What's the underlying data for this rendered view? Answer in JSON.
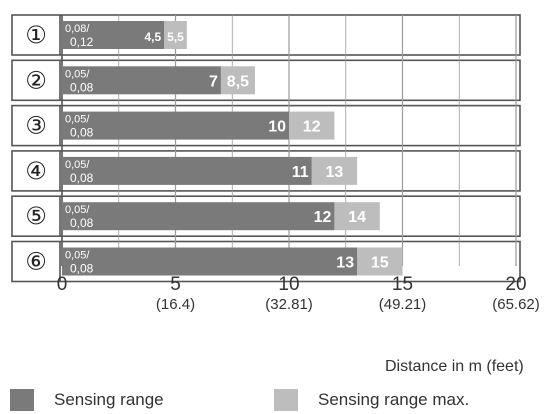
{
  "chart_data": {
    "type": "bar",
    "orientation": "horizontal",
    "stacked_range": true,
    "categories": [
      "①",
      "②",
      "③",
      "④",
      "⑤",
      "⑥"
    ],
    "series": [
      {
        "name": "Sensing range",
        "values": [
          4.5,
          7,
          10,
          11,
          12,
          13
        ],
        "labels": [
          "4,5",
          "7",
          "10",
          "11",
          "12",
          "13"
        ]
      },
      {
        "name": "Sensing range max.",
        "values": [
          5.5,
          8.5,
          12,
          13,
          14,
          15
        ],
        "labels": [
          "5,5",
          "8,5",
          "12",
          "13",
          "14",
          "15"
        ]
      }
    ],
    "min_labels": [
      [
        "0,08/",
        "0,12"
      ],
      [
        "0,05/",
        "0,08"
      ],
      [
        "0,05/",
        "0,08"
      ],
      [
        "0,05/",
        "0,08"
      ],
      [
        "0,05/",
        "0,08"
      ],
      [
        "0,05/",
        "0,08"
      ]
    ],
    "x_ticks": [
      0,
      5,
      10,
      15,
      20
    ],
    "x_tick_labels": [
      "0",
      "5",
      "10",
      "15",
      "20"
    ],
    "x_tick_sublabels": [
      "",
      "(16.4)",
      "(32.81)",
      "(49.21)",
      "(65.62)"
    ],
    "xlim": [
      0,
      20
    ],
    "xlabel": "Distance in m (feet)",
    "grid": true,
    "legend_position": "bottom",
    "colors": {
      "sensing_range": "#7a7a7a",
      "sensing_range_max": "#bdbdbd",
      "grid": "#9a9a9a",
      "border": "#555555",
      "value_text": "#ffffff",
      "axis_text": "#333333"
    }
  },
  "legend": {
    "items": [
      {
        "label": "Sensing range",
        "color": "#7a7a7a"
      },
      {
        "label": "Sensing range max.",
        "color": "#bdbdbd"
      }
    ]
  }
}
